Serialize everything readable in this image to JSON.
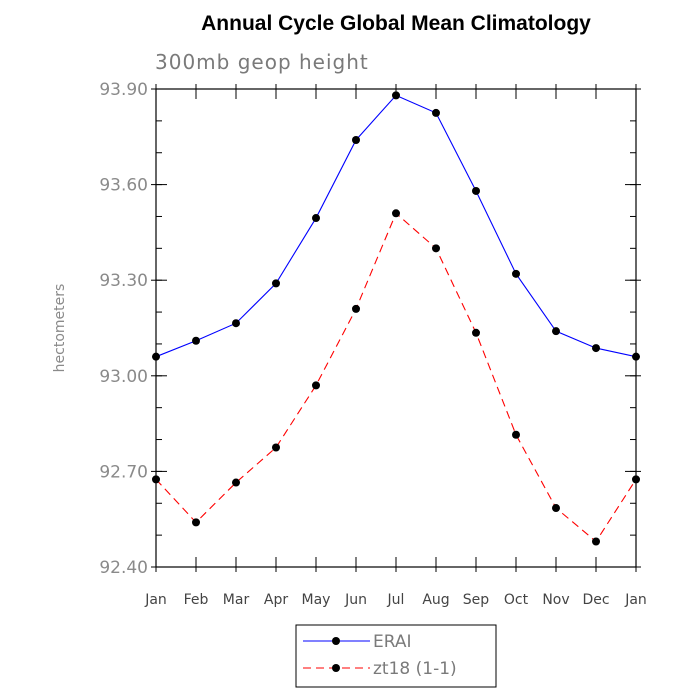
{
  "chart_data": {
    "type": "line",
    "title": "Annual Cycle Global Mean Climatology",
    "subtitle": "300mb geop height",
    "ylabel": "hectometers",
    "xlabel": "",
    "ylim": [
      92.4,
      93.9
    ],
    "yticks": [
      "92.40",
      "92.70",
      "93.00",
      "93.30",
      "93.60",
      "93.90"
    ],
    "ytick_values": [
      92.4,
      92.7,
      93.0,
      93.3,
      93.6,
      93.9
    ],
    "categories": [
      "Jan",
      "Feb",
      "Mar",
      "Apr",
      "May",
      "Jun",
      "Jul",
      "Aug",
      "Sep",
      "Oct",
      "Nov",
      "Dec",
      "Jan"
    ],
    "series": [
      {
        "name": "ERAI",
        "color": "#0000ff",
        "dash": "solid",
        "values": [
          93.06,
          93.11,
          93.165,
          93.29,
          93.495,
          93.74,
          93.88,
          93.825,
          93.58,
          93.32,
          93.14,
          93.087,
          93.06
        ]
      },
      {
        "name": "zt18 (1-1)",
        "color": "#ff0000",
        "dash": "dashed",
        "values": [
          92.675,
          92.54,
          92.665,
          92.775,
          92.97,
          93.21,
          93.51,
          93.4,
          93.135,
          92.815,
          92.585,
          92.48,
          92.675
        ]
      }
    ],
    "legend_position": "bottom-center",
    "grid": false
  }
}
